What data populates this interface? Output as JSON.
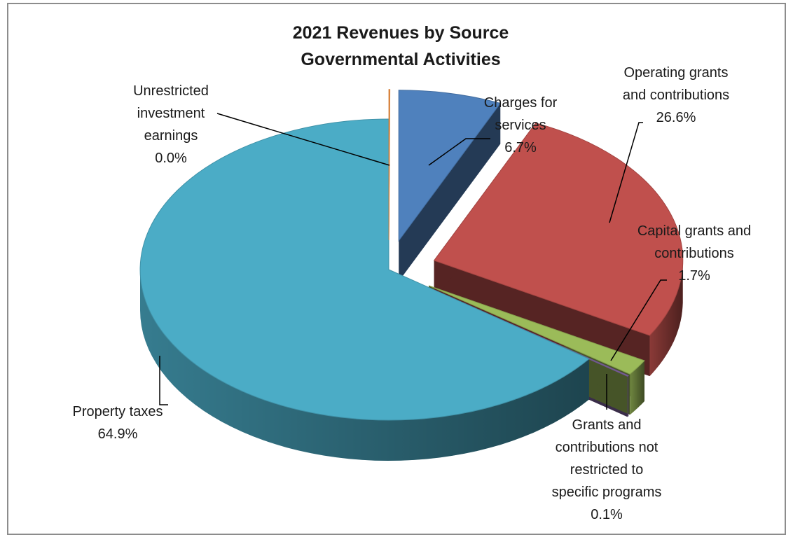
{
  "chart_data": {
    "type": "pie",
    "title": "2021 Revenues by Source",
    "subtitle": "Governmental Activities",
    "slices": [
      {
        "name": "Charges for services",
        "value": 6.7,
        "value_label": "6.7%",
        "label_lines": [
          "Charges for",
          "services",
          "6.7%"
        ],
        "color": "#4F81BD",
        "exploded": true
      },
      {
        "name": "Operating grants and contributions",
        "value": 26.6,
        "value_label": "26.6%",
        "label_lines": [
          "Operating grants",
          "and contributions",
          "26.6%"
        ],
        "color": "#C0504D",
        "exploded": true
      },
      {
        "name": "Capital grants and contributions",
        "value": 1.7,
        "value_label": "1.7%",
        "label_lines": [
          "Capital grants and",
          "contributions",
          "1.7%"
        ],
        "color": "#9BBB59",
        "exploded": true
      },
      {
        "name": "Grants and contributions not restricted to specific programs",
        "value": 0.1,
        "value_label": "0.1%",
        "label_lines": [
          "Grants and",
          "contributions not",
          "restricted to",
          "specific programs",
          "0.1%"
        ],
        "color": "#8064A2",
        "exploded": true
      },
      {
        "name": "Property taxes",
        "value": 64.9,
        "value_label": "64.9%",
        "label_lines": [
          "Property taxes",
          "64.9%"
        ],
        "color": "#4BACC6",
        "exploded": false
      },
      {
        "name": "Unrestricted investment earnings",
        "value": 0.0,
        "value_label": "0.0%",
        "label_lines": [
          "Unrestricted",
          "investment",
          "earnings",
          "0.0%"
        ],
        "color": "#F79646",
        "exploded": true
      }
    ],
    "style": "3d-exploded-pie",
    "legend": "none"
  }
}
